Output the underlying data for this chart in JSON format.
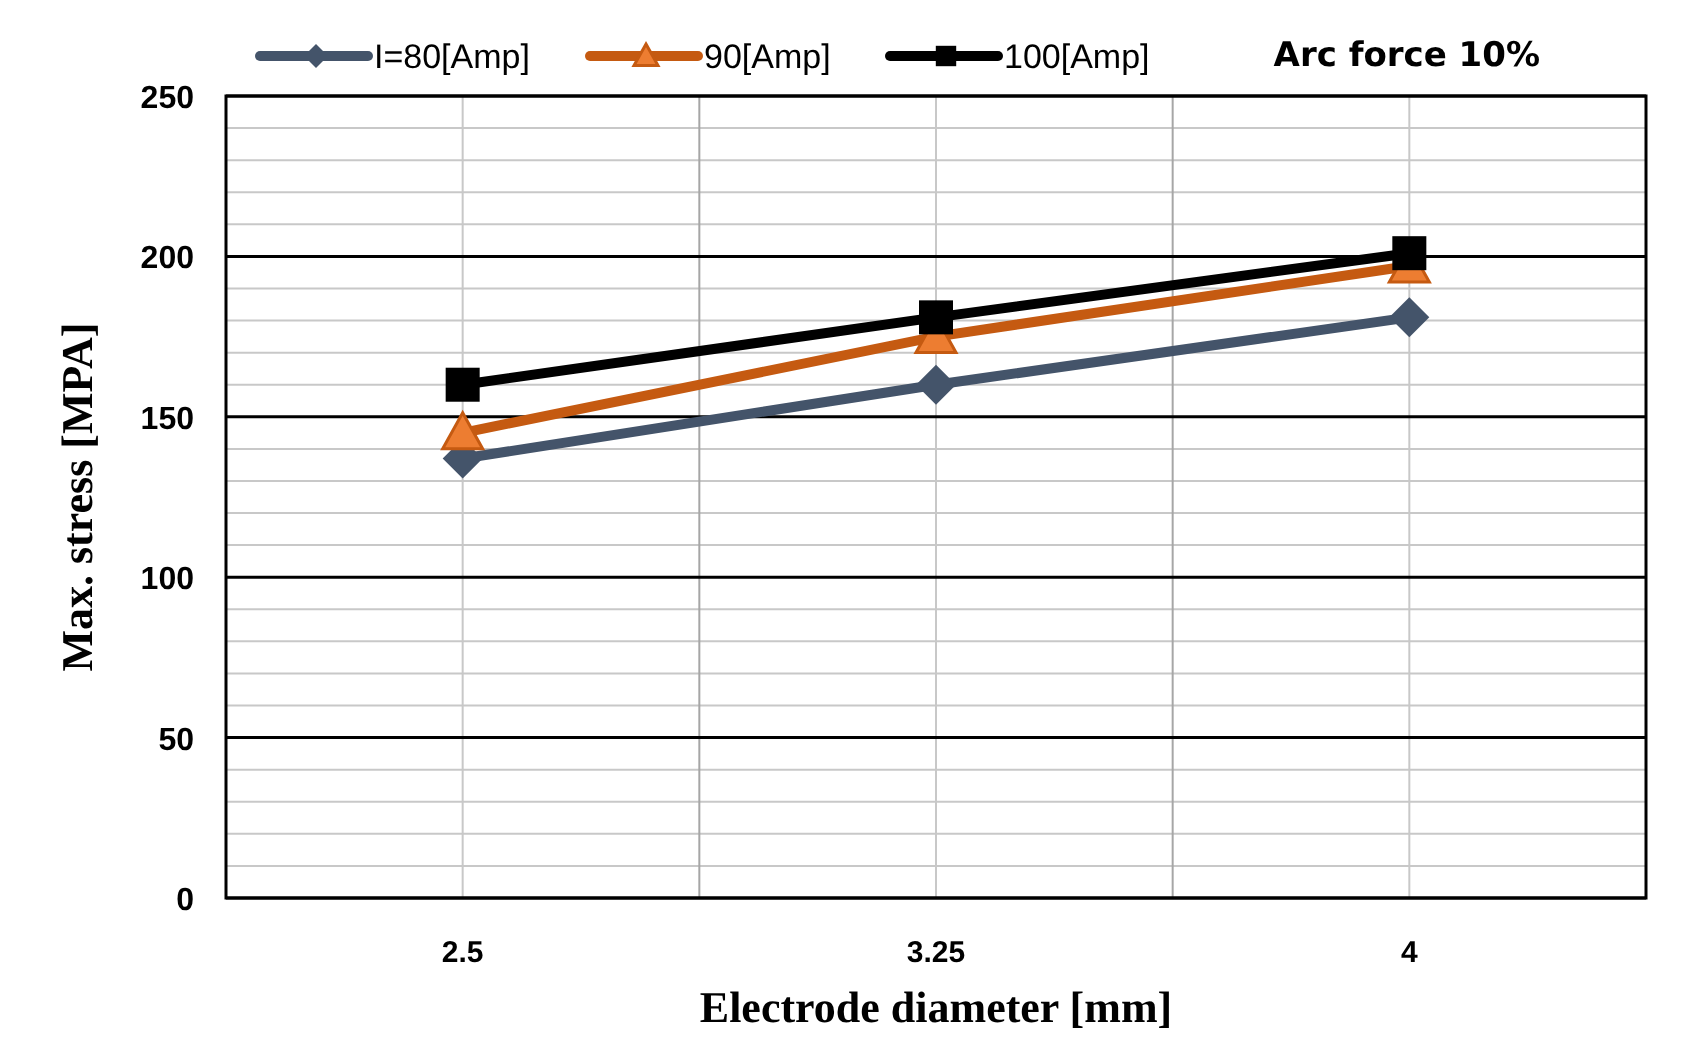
{
  "chart_data": {
    "type": "line",
    "title": "Arc force 10%",
    "xlabel": "Electrode diameter [mm]",
    "ylabel": "Max. stress [MPA]",
    "categories": [
      "2.5",
      "3.25",
      "4"
    ],
    "series": [
      {
        "name": "I=80[Amp]",
        "color": "#44546a",
        "marker": "diamond",
        "values": [
          137,
          160,
          181
        ]
      },
      {
        "name": "90[Amp]",
        "color": "#c55a11",
        "marker": "triangle",
        "values": [
          145,
          175,
          197
        ]
      },
      {
        "name": "100[Amp]",
        "color": "#000000",
        "marker": "square",
        "values": [
          160,
          181,
          201
        ]
      }
    ],
    "ylim": [
      0,
      250
    ],
    "yticks": [
      0,
      50,
      100,
      150,
      200,
      250
    ],
    "grid": true,
    "legend": "top",
    "line_style": "solid"
  }
}
